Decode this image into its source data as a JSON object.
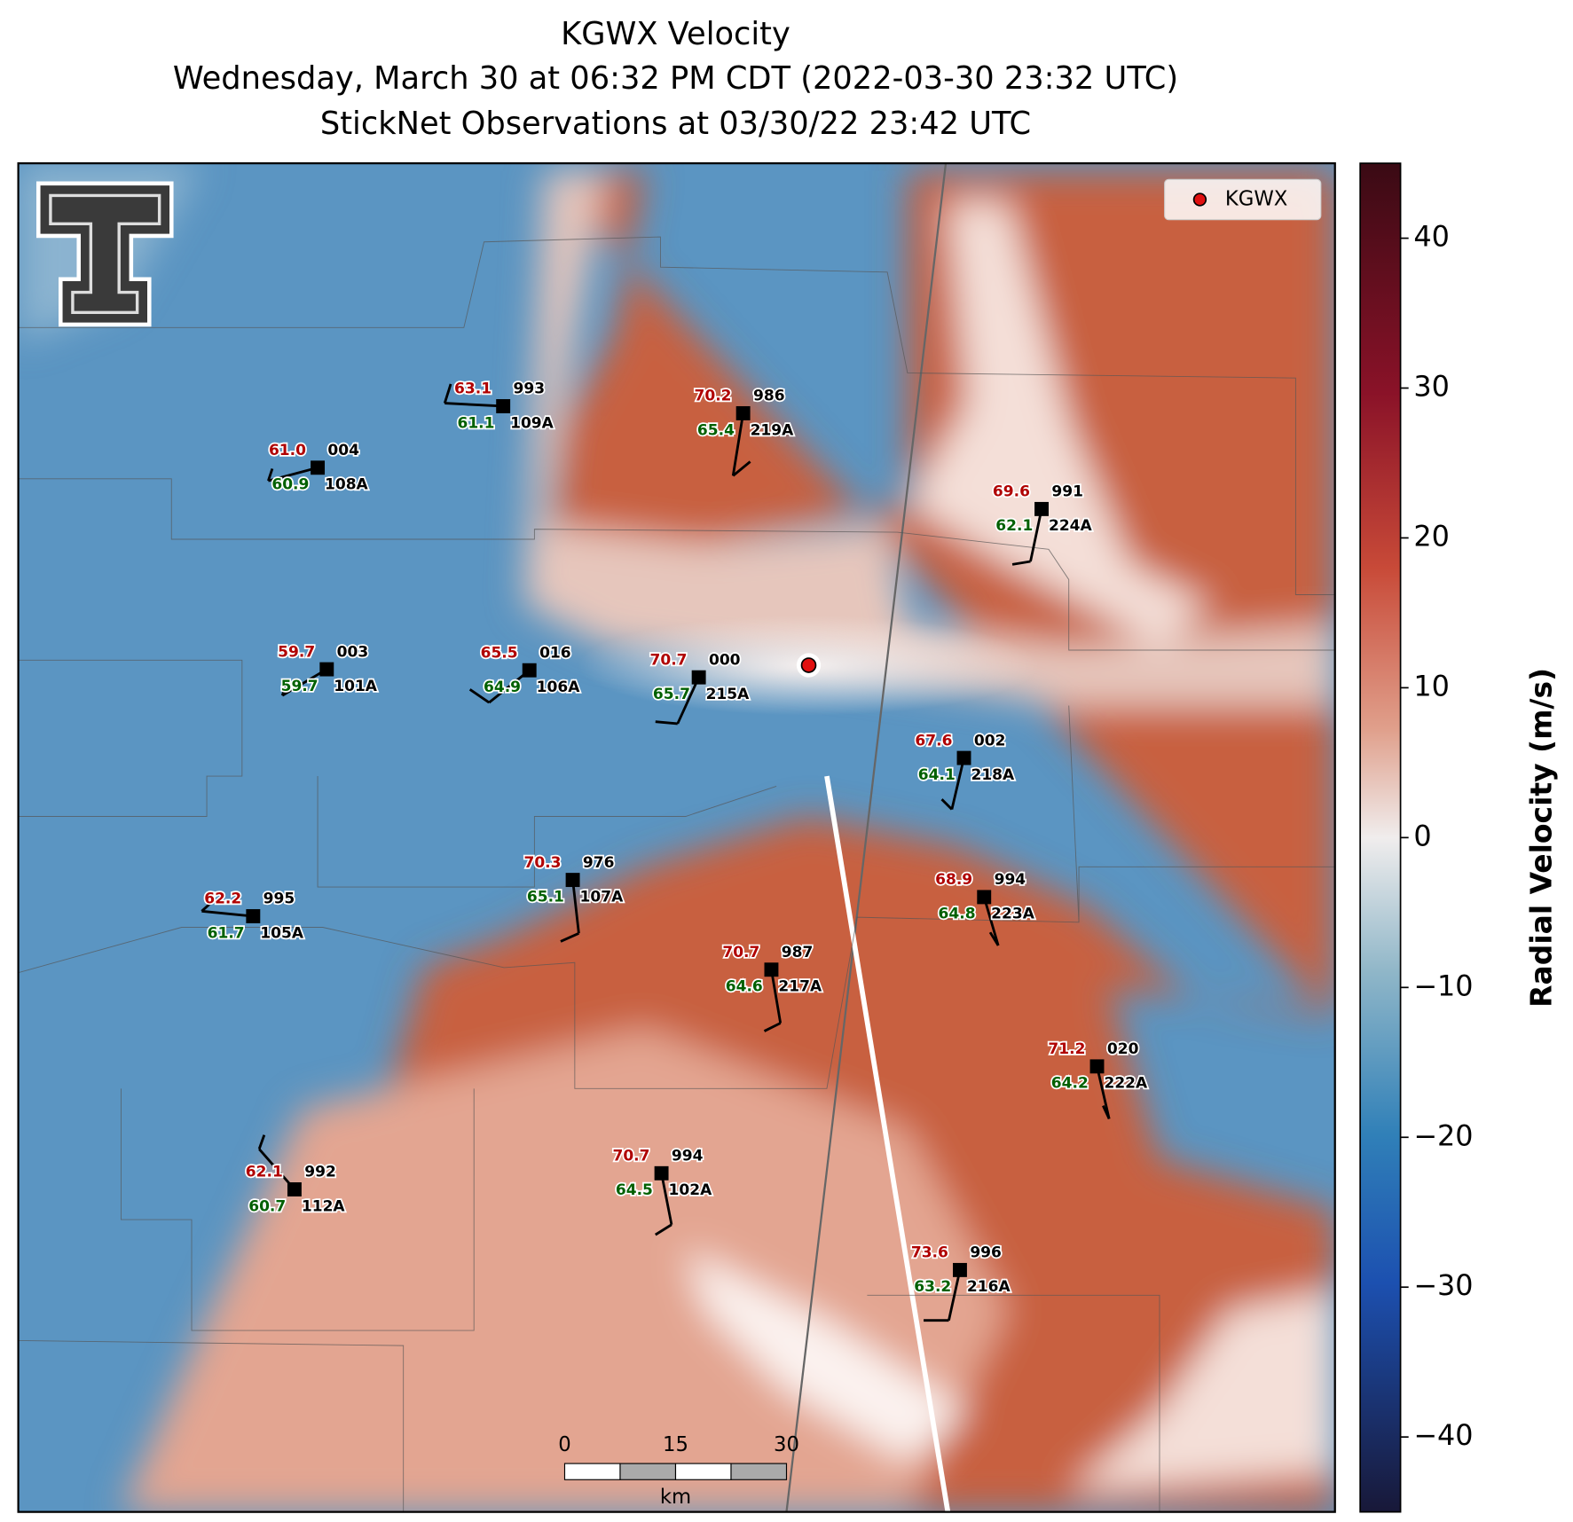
{
  "header": {
    "title": "KGWX Velocity",
    "subtitle": "Wednesday, March 30 at 06:32 PM CDT (2022-03-30 23:32 UTC)",
    "observations": "StickNet Observations at 03/30/22 23:42 UTC"
  },
  "legend": {
    "label": "KGWX"
  },
  "colorbar": {
    "label": "Radial Velocity (m/s)",
    "range": [
      -45,
      45
    ],
    "ticks": [
      {
        "value": -40,
        "label": "−40"
      },
      {
        "value": -30,
        "label": "−30"
      },
      {
        "value": -20,
        "label": "−20"
      },
      {
        "value": -10,
        "label": "−10"
      },
      0,
      10,
      20,
      30,
      40
    ]
  },
  "scale_bar": {
    "ticks": [
      0,
      15,
      30
    ],
    "unit": "km"
  },
  "stations": [
    {
      "id": "109A",
      "pressure": "993",
      "temperature": "63.1",
      "dewpoint": "61.1"
    },
    {
      "id": "219A",
      "pressure": "986",
      "temperature": "70.2",
      "dewpoint": "65.4"
    },
    {
      "id": "108A",
      "pressure": "004",
      "temperature": "61.0",
      "dewpoint": "60.9"
    },
    {
      "id": "224A",
      "pressure": "991",
      "temperature": "69.6",
      "dewpoint": "62.1"
    },
    {
      "id": "101A",
      "pressure": "003",
      "temperature": "59.7",
      "dewpoint": "59.7"
    },
    {
      "id": "106A",
      "pressure": "016",
      "temperature": "65.5",
      "dewpoint": "64.9"
    },
    {
      "id": "215A",
      "pressure": "000",
      "temperature": "70.7",
      "dewpoint": "65.7"
    },
    {
      "id": "218A",
      "pressure": "002",
      "temperature": "67.6",
      "dewpoint": "64.1"
    },
    {
      "id": "107A",
      "pressure": "976",
      "temperature": "70.3",
      "dewpoint": "65.1"
    },
    {
      "id": "105A",
      "pressure": "995",
      "temperature": "62.2",
      "dewpoint": "61.7"
    },
    {
      "id": "223A",
      "pressure": "994",
      "temperature": "68.9",
      "dewpoint": "64.8"
    },
    {
      "id": "217A",
      "pressure": "987",
      "temperature": "70.7",
      "dewpoint": "64.6"
    },
    {
      "id": "222A",
      "pressure": "020",
      "temperature": "71.2",
      "dewpoint": "64.2"
    },
    {
      "id": "112A",
      "pressure": "992",
      "temperature": "62.1",
      "dewpoint": "60.7"
    },
    {
      "id": "102A",
      "pressure": "994",
      "temperature": "70.7",
      "dewpoint": "64.5"
    },
    {
      "id": "216A",
      "pressure": "996",
      "temperature": "73.6",
      "dewpoint": "63.2"
    }
  ]
}
